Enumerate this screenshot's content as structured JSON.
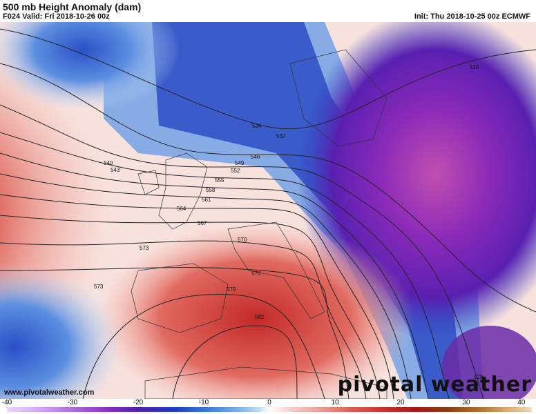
{
  "header": {
    "title": "500 mb Height Anomaly (dam)",
    "valid": "F024 Valid: Fri 2018-10-26 00z",
    "init": "Init: Thu 2018-10-25 00z ECMWF"
  },
  "footer": {
    "site": "www.pivotalweather.com",
    "brand": "pivotal weather"
  },
  "colorbar": {
    "ticks": [
      "-40",
      "-30",
      "-20",
      "-10",
      "0",
      "10",
      "20",
      "30",
      "40"
    ],
    "range": [
      -40,
      40
    ]
  },
  "contours": {
    "labels": [
      "519",
      "528",
      "534",
      "537",
      "540",
      "543",
      "546",
      "549",
      "552",
      "555",
      "558",
      "561",
      "564",
      "567",
      "570",
      "573",
      "576",
      "579",
      "582"
    ]
  },
  "colors": {
    "positive_max": "#a81818",
    "negative_max": "#6a20b0",
    "neutral": "#ffffff",
    "blue": "#2a50c8"
  }
}
